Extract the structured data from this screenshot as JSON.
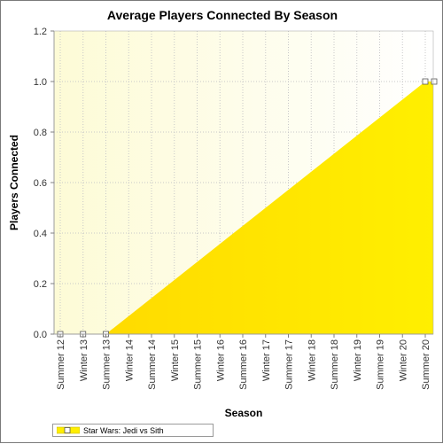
{
  "chart_data": {
    "type": "area",
    "title": "Average Players Connected By Season",
    "xlabel": "Season",
    "ylabel": "Players Connected",
    "categories": [
      "Summer 12",
      "Winter 13",
      "Summer 13",
      "Winter 14",
      "Summer 14",
      "Winter 15",
      "Summer 15",
      "Winter 16",
      "Summer 16",
      "Winter 17",
      "Summer 17",
      "Winter 18",
      "Summer 18",
      "Winter 19",
      "Summer 19",
      "Winter 20",
      "Summer 20"
    ],
    "ylim": [
      0,
      1.2
    ],
    "yticks": [
      0.0,
      0.2,
      0.4,
      0.6,
      0.8,
      1.0,
      1.2
    ],
    "ytick_labels": [
      "0.0",
      "0.2",
      "0.4",
      "0.6",
      "0.8",
      "1.0",
      "1.2"
    ],
    "grid": true,
    "legend_position": "bottom-left",
    "series": [
      {
        "name": "Star Wars: Jedi vs Sith",
        "color": "#ffee00",
        "points": [
          {
            "x": "Summer 12",
            "y": 0
          },
          {
            "x": "Winter 13",
            "y": 0
          },
          {
            "x": "Summer 13",
            "y": 0
          },
          {
            "x": "Summer 20",
            "y": 1.0
          }
        ]
      }
    ]
  }
}
